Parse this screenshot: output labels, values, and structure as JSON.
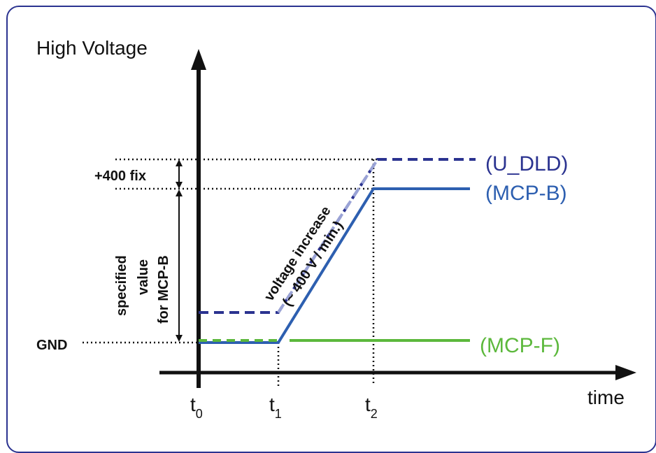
{
  "diagram": {
    "y_axis_label": "High Voltage",
    "x_axis_label": "time",
    "gnd_label": "GND",
    "offset_label": "+400 fix",
    "specified_label_lines": [
      "specified",
      "value",
      "for MCP-B"
    ],
    "ramp_label_line1": "voltage increase",
    "ramp_label_line2": "(~ 400 V / min.)",
    "time_marks": [
      {
        "base": "t",
        "sub": "0"
      },
      {
        "base": "t",
        "sub": "1"
      },
      {
        "base": "t",
        "sub": "2"
      }
    ],
    "series": [
      {
        "name": "(U_DLD)",
        "color": "#2b3390",
        "style": "dashed"
      },
      {
        "name": "(MCP-B)",
        "color": "#2d5fb0",
        "style": "solid"
      },
      {
        "name": "(MCP-F)",
        "color": "#5cb83c",
        "style": "solid"
      }
    ]
  }
}
